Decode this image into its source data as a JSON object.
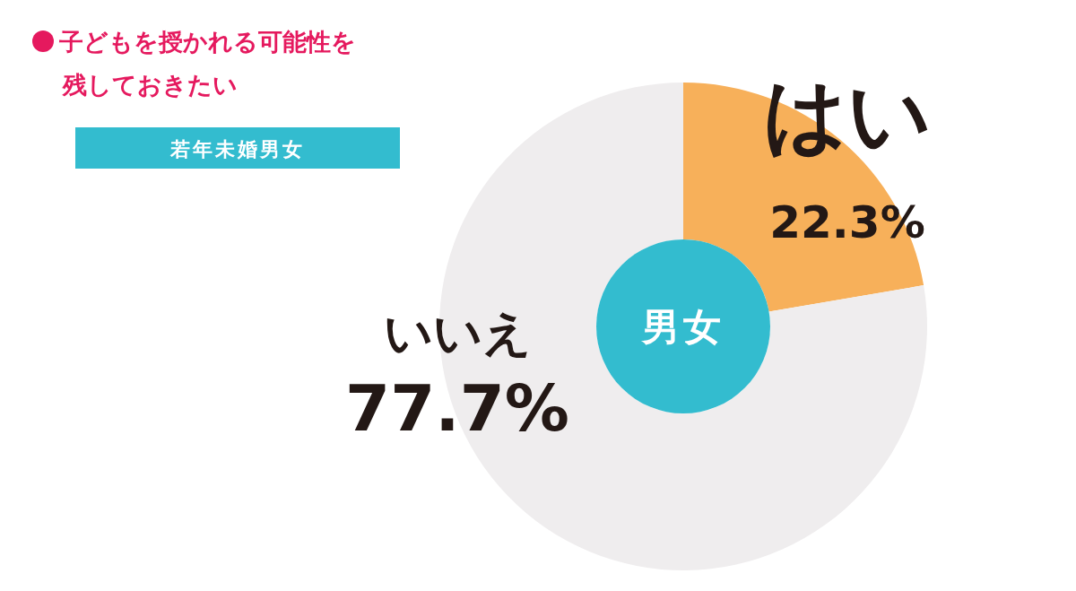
{
  "chart_data": {
    "type": "donut",
    "title": "子どもを授かれる可能性を残しておきたい",
    "subtitle": "若年未婚男女",
    "categories": [
      "はい",
      "いいえ"
    ],
    "values": [
      22.3,
      77.7
    ],
    "value_labels": [
      "22.3%",
      "77.7%"
    ],
    "colors": [
      "#f7b05a",
      "#efedee"
    ],
    "annotations": [
      "男女"
    ]
  }
}
